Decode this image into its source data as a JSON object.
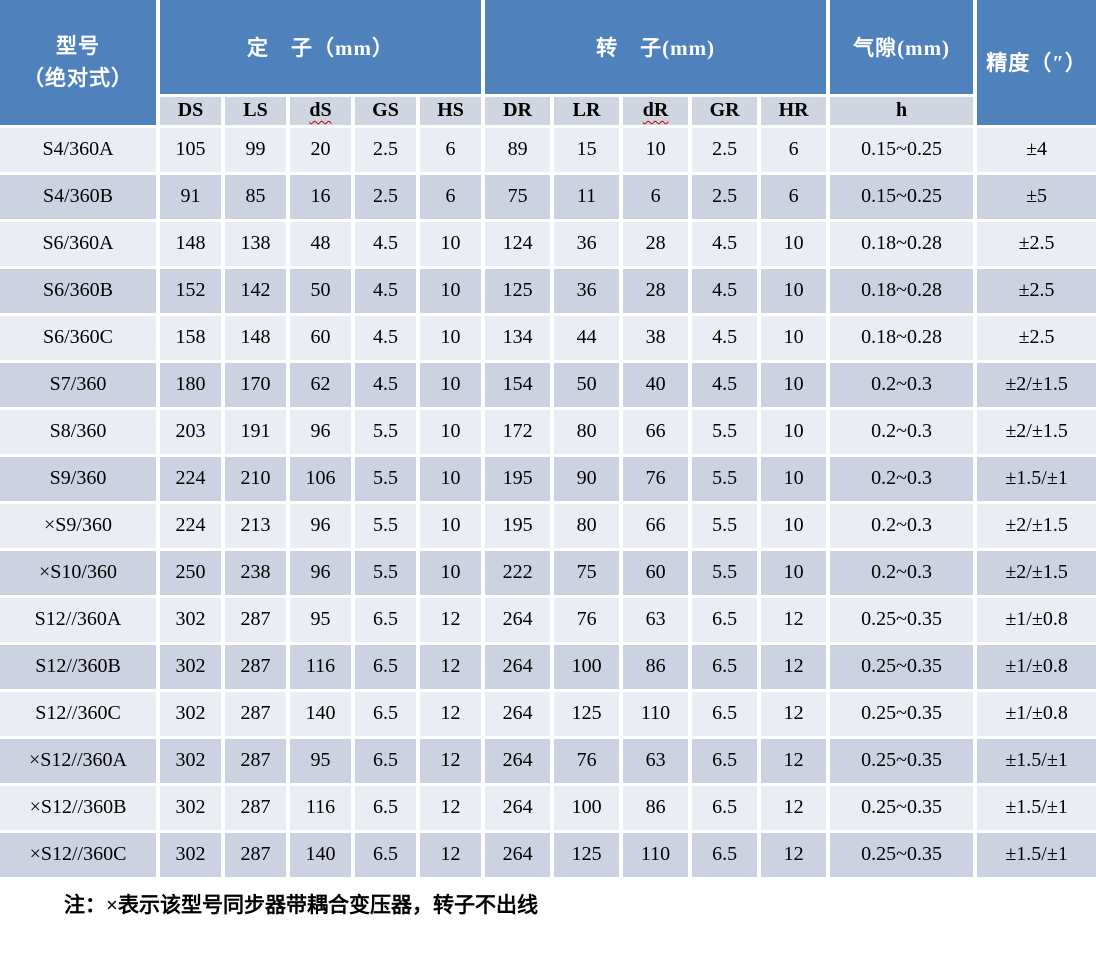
{
  "colors": {
    "header_blue": "#4f81bd",
    "subheader_bg": "#d0d5e2",
    "row_light": "#eaedf4",
    "row_dark": "#ccd2e1",
    "misspell_underline": "#c00000"
  },
  "table": {
    "header": {
      "model_line1": "型号",
      "model_line2": "（绝对式）",
      "stator_group": "定　子（mm）",
      "rotor_group": "转　子(mm)",
      "airgap_group": "气隙(mm)",
      "accuracy_title": "精度（″）",
      "stator_cols": [
        "DS",
        "LS",
        "dS",
        "GS",
        "HS"
      ],
      "rotor_cols": [
        "DR",
        "LR",
        "dR",
        "GR",
        "HR"
      ],
      "airgap_col": "h"
    },
    "rows": [
      {
        "model": "S4/360A",
        "values": [
          "105",
          "99",
          "20",
          "2.5",
          "6",
          "89",
          "15",
          "10",
          "2.5",
          "6",
          "0.15~0.25",
          "±4"
        ]
      },
      {
        "model": "S4/360B",
        "values": [
          "91",
          "85",
          "16",
          "2.5",
          "6",
          "75",
          "11",
          "6",
          "2.5",
          "6",
          "0.15~0.25",
          "±5"
        ]
      },
      {
        "model": "S6/360A",
        "values": [
          "148",
          "138",
          "48",
          "4.5",
          "10",
          "124",
          "36",
          "28",
          "4.5",
          "10",
          "0.18~0.28",
          "±2.5"
        ]
      },
      {
        "model": "S6/360B",
        "values": [
          "152",
          "142",
          "50",
          "4.5",
          "10",
          "125",
          "36",
          "28",
          "4.5",
          "10",
          "0.18~0.28",
          "±2.5"
        ]
      },
      {
        "model": "S6/360C",
        "values": [
          "158",
          "148",
          "60",
          "4.5",
          "10",
          "134",
          "44",
          "38",
          "4.5",
          "10",
          "0.18~0.28",
          "±2.5"
        ]
      },
      {
        "model": "S7/360",
        "values": [
          "180",
          "170",
          "62",
          "4.5",
          "10",
          "154",
          "50",
          "40",
          "4.5",
          "10",
          "0.2~0.3",
          "±2/±1.5"
        ]
      },
      {
        "model": "S8/360",
        "values": [
          "203",
          "191",
          "96",
          "5.5",
          "10",
          "172",
          "80",
          "66",
          "5.5",
          "10",
          "0.2~0.3",
          "±2/±1.5"
        ]
      },
      {
        "model": "S9/360",
        "values": [
          "224",
          "210",
          "106",
          "5.5",
          "10",
          "195",
          "90",
          "76",
          "5.5",
          "10",
          "0.2~0.3",
          "±1.5/±1"
        ]
      },
      {
        "model": "×S9/360",
        "values": [
          "224",
          "213",
          "96",
          "5.5",
          "10",
          "195",
          "80",
          "66",
          "5.5",
          "10",
          "0.2~0.3",
          "±2/±1.5"
        ]
      },
      {
        "model": "×S10/360",
        "values": [
          "250",
          "238",
          "96",
          "5.5",
          "10",
          "222",
          "75",
          "60",
          "5.5",
          "10",
          "0.2~0.3",
          "±2/±1.5"
        ]
      },
      {
        "model": "S12//360A",
        "values": [
          "302",
          "287",
          "95",
          "6.5",
          "12",
          "264",
          "76",
          "63",
          "6.5",
          "12",
          "0.25~0.35",
          "±1/±0.8"
        ]
      },
      {
        "model": "S12//360B",
        "values": [
          "302",
          "287",
          "116",
          "6.5",
          "12",
          "264",
          "100",
          "86",
          "6.5",
          "12",
          "0.25~0.35",
          "±1/±0.8"
        ]
      },
      {
        "model": "S12//360C",
        "values": [
          "302",
          "287",
          "140",
          "6.5",
          "12",
          "264",
          "125",
          "110",
          "6.5",
          "12",
          "0.25~0.35",
          "±1/±0.8"
        ]
      },
      {
        "model": "×S12//360A",
        "values": [
          "302",
          "287",
          "95",
          "6.5",
          "12",
          "264",
          "76",
          "63",
          "6.5",
          "12",
          "0.25~0.35",
          "±1.5/±1"
        ]
      },
      {
        "model": "×S12//360B",
        "values": [
          "302",
          "287",
          "116",
          "6.5",
          "12",
          "264",
          "100",
          "86",
          "6.5",
          "12",
          "0.25~0.35",
          "±1.5/±1"
        ]
      },
      {
        "model": "×S12//360C",
        "values": [
          "302",
          "287",
          "140",
          "6.5",
          "12",
          "264",
          "125",
          "110",
          "6.5",
          "12",
          "0.25~0.35",
          "±1.5/±1"
        ]
      }
    ],
    "note": "注：×表示该型号同步器带耦合变压器，转子不出线"
  }
}
